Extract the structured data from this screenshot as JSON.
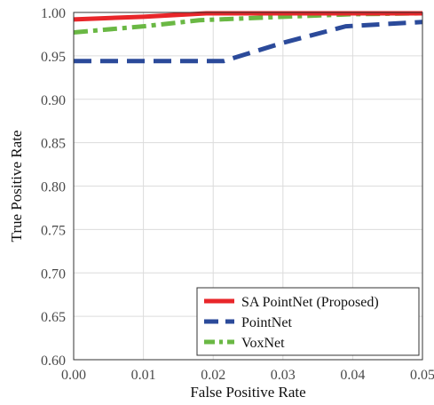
{
  "chart_data": {
    "type": "line",
    "title": "",
    "xlabel": "False Positive Rate",
    "ylabel": "True Positive Rate",
    "xlim": [
      0.0,
      0.05
    ],
    "ylim": [
      0.6,
      1.0
    ],
    "xticks": [
      0.0,
      0.01,
      0.02,
      0.03,
      0.04,
      0.05
    ],
    "yticks": [
      0.6,
      0.65,
      0.7,
      0.75,
      0.8,
      0.85,
      0.9,
      0.95,
      1.0
    ],
    "xtick_labels": [
      "0.00",
      "0.01",
      "0.02",
      "0.03",
      "0.04",
      "0.05"
    ],
    "ytick_labels": [
      "0.60",
      "0.65",
      "0.70",
      "0.75",
      "0.80",
      "0.85",
      "0.90",
      "0.95",
      "1.00"
    ],
    "grid": true,
    "legend_position": "bottom-right",
    "series": [
      {
        "name": "SA PointNet (Proposed)",
        "color": "#e8262a",
        "style": "solid",
        "x": [
          0.0,
          0.01,
          0.019,
          0.03,
          0.04,
          0.05
        ],
        "y": [
          0.992,
          0.995,
          0.999,
          0.999,
          0.999,
          0.999
        ]
      },
      {
        "name": "PointNet",
        "color": "#2b4a9a",
        "style": "dashed",
        "x": [
          0.0,
          0.01,
          0.0215,
          0.03,
          0.039,
          0.05
        ],
        "y": [
          0.944,
          0.944,
          0.944,
          0.965,
          0.984,
          0.989
        ]
      },
      {
        "name": "VoxNet",
        "color": "#6ab844",
        "style": "dashdot",
        "x": [
          0.0,
          0.01,
          0.018,
          0.03,
          0.04,
          0.05
        ],
        "y": [
          0.977,
          0.984,
          0.991,
          0.995,
          0.998,
          0.999
        ]
      }
    ]
  }
}
